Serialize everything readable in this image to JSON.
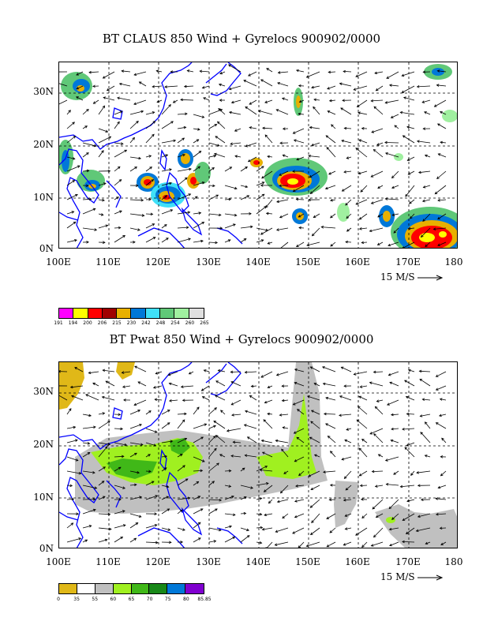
{
  "maps": [
    {
      "title": "BT CLAUS 850 Wind + Gyrelocs 900902/0000",
      "lat_labels": [
        "30N",
        "20N",
        "10N",
        "0N"
      ],
      "lon_labels": [
        "100E",
        "110E",
        "120E",
        "130E",
        "140E",
        "150E",
        "160E",
        "170E",
        "180"
      ],
      "ref_vector": "15 M/S",
      "colorbar": {
        "colors": [
          "#ff00ff",
          "#ffff00",
          "#ff0000",
          "#a00000",
          "#e8b000",
          "#0078d8",
          "#40e0f8",
          "#60c878",
          "#a0f0a0",
          "#e0e0e0"
        ],
        "labels": [
          "191",
          "194",
          "200",
          "206",
          "215",
          "230",
          "242",
          "248",
          "254",
          "260",
          "265"
        ]
      }
    },
    {
      "title": "BT Pwat 850 Wind + Gyrelocs 900902/0000",
      "lat_labels": [
        "30N",
        "20N",
        "10N",
        "0N"
      ],
      "lon_labels": [
        "100E",
        "110E",
        "120E",
        "130E",
        "140E",
        "150E",
        "160E",
        "170E",
        "180"
      ],
      "ref_vector": "15 M/S",
      "colorbar": {
        "colors": [
          "#e0b818",
          "#ffffff",
          "#c0c0c0",
          "#a0f020",
          "#40b818",
          "#188818",
          "#0078d8",
          "#8000d0"
        ],
        "labels": [
          "0",
          "35",
          "55",
          "60",
          "65",
          "70",
          "75",
          "80",
          "85.85"
        ]
      }
    }
  ],
  "colors": {
    "coastline": "#0000ff",
    "grid": "#000000",
    "background": "#ffffff"
  }
}
